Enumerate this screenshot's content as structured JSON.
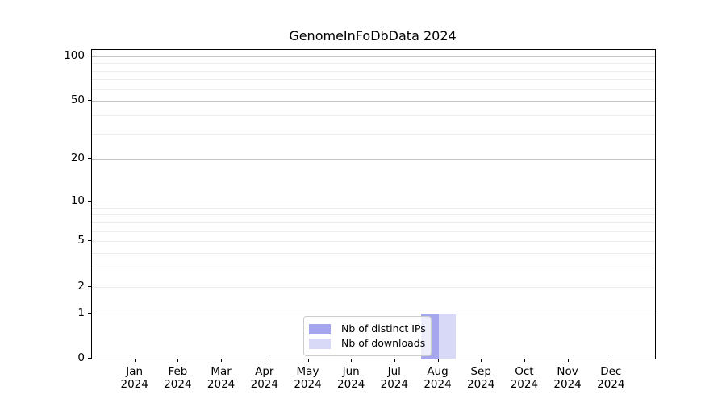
{
  "title": "GenomeInFoDbData 2024",
  "colors": {
    "distinct_ips_bar": "#a6a6ef",
    "downloads_bar": "#d8d8f7",
    "grid_major": "#c3c3c3",
    "grid_minor": "#ececec",
    "spine": "#000000",
    "legend_border": "#cccccc",
    "legend_background": "rgba(255,255,255,0.8)"
  },
  "legend": {
    "items": [
      {
        "label": "Nb of distinct IPs",
        "color": "#a6a6ef"
      },
      {
        "label": "Nb of downloads",
        "color": "#d8d8f7"
      }
    ]
  },
  "chart_data": {
    "type": "bar",
    "title": "GenomeInFoDbData 2024",
    "categories": [
      "Jan",
      "Feb",
      "Mar",
      "Apr",
      "May",
      "Jun",
      "Jul",
      "Aug",
      "Sep",
      "Oct",
      "Nov",
      "Dec"
    ],
    "x_year_label": "2024",
    "series": [
      {
        "name": "Nb of distinct IPs",
        "color": "#a6a6ef",
        "values": [
          0,
          0,
          0,
          0,
          0,
          0,
          0,
          1,
          0,
          0,
          0,
          0
        ]
      },
      {
        "name": "Nb of downloads",
        "color": "#d8d8f7",
        "values": [
          0,
          0,
          0,
          0,
          0,
          0,
          0,
          1,
          0,
          0,
          0,
          0
        ]
      }
    ],
    "xlabel": "",
    "ylabel": "",
    "y_scale": "log1p",
    "y_ticks": [
      0,
      1,
      2,
      5,
      10,
      20,
      50,
      100
    ],
    "grid_major": [
      1,
      10,
      20,
      50,
      100
    ],
    "grid_minor": [
      2,
      3,
      4,
      5,
      6,
      7,
      8,
      9,
      30,
      40,
      60,
      70,
      80,
      90
    ],
    "ylim": [
      0,
      110
    ],
    "grid": true,
    "legend_position": "bottom-center"
  }
}
